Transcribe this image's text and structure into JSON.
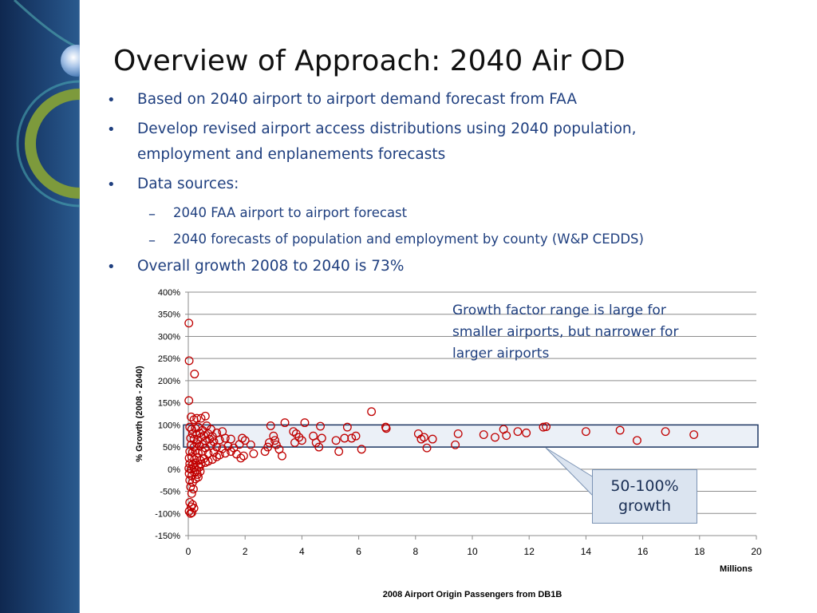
{
  "slide": {
    "title": "Overview of Approach: 2040 Air OD",
    "bullets": [
      {
        "level": 1,
        "lines": [
          "Based on 2040 airport to airport demand forecast from FAA"
        ]
      },
      {
        "level": 1,
        "lines": [
          "Develop revised airport access distributions using 2040 population,",
          "employment and enplanements forecasts"
        ]
      },
      {
        "level": 1,
        "lines": [
          "Data sources:"
        ]
      },
      {
        "level": 2,
        "lines": [
          "2040 FAA airport to airport forecast"
        ]
      },
      {
        "level": 2,
        "lines": [
          "2040 forecasts of population and employment by county (W&P CEDDS)"
        ]
      },
      {
        "level": 1,
        "lines": [
          "Overall growth 2008 to 2040 is 73%"
        ]
      }
    ],
    "bullet_char": "•",
    "sub_bullet_char": "–"
  },
  "chart_data": {
    "type": "scatter",
    "xlabel": "2008 Airport Origin Passengers from DB1B",
    "x_unit_label": "Millions",
    "ylabel": "% Growth (2008 - 2040)",
    "xlim": [
      0,
      20
    ],
    "ylim": [
      -150,
      400
    ],
    "x_ticks": [
      0,
      2,
      4,
      6,
      8,
      10,
      12,
      14,
      16,
      18,
      20
    ],
    "x_tick_labels": [
      "0",
      "2",
      "4",
      "6",
      "8",
      "10",
      "12",
      "14",
      "16",
      "18",
      "20"
    ],
    "y_ticks": [
      -150,
      -100,
      -50,
      0,
      50,
      100,
      150,
      200,
      250,
      300,
      350,
      400
    ],
    "y_tick_labels": [
      "-150%",
      "-100%",
      "-50%",
      "0%",
      "50%",
      "100%",
      "150%",
      "200%",
      "250%",
      "300%",
      "350%",
      "400%"
    ],
    "grid": "horizontal",
    "marker": "open-circle",
    "marker_color": "#c00000",
    "highlight_band": {
      "y_range": [
        50,
        100
      ],
      "fill": "#dbe4f0",
      "stroke": "#1f3864"
    },
    "annotations": [
      {
        "text_lines": [
          "Growth factor range is large for",
          "smaller airports, but narrower for",
          "larger airports"
        ]
      },
      {
        "text_lines": [
          "50-100%",
          "growth"
        ],
        "type": "callout-box"
      }
    ],
    "points": [
      [
        0.02,
        330
      ],
      [
        0.03,
        245
      ],
      [
        0.22,
        215
      ],
      [
        0.02,
        155
      ],
      [
        0.1,
        118
      ],
      [
        0.2,
        112
      ],
      [
        0.3,
        115
      ],
      [
        0.45,
        115
      ],
      [
        0.6,
        120
      ],
      [
        0.05,
        95
      ],
      [
        0.12,
        90
      ],
      [
        0.25,
        92
      ],
      [
        0.35,
        95
      ],
      [
        0.5,
        88
      ],
      [
        0.65,
        98
      ],
      [
        0.8,
        90
      ],
      [
        0.15,
        80
      ],
      [
        0.3,
        78
      ],
      [
        0.4,
        82
      ],
      [
        0.55,
        76
      ],
      [
        0.7,
        80
      ],
      [
        0.85,
        74
      ],
      [
        1.0,
        82
      ],
      [
        1.2,
        85
      ],
      [
        0.08,
        70
      ],
      [
        0.2,
        68
      ],
      [
        0.33,
        66
      ],
      [
        0.45,
        72
      ],
      [
        0.6,
        64
      ],
      [
        0.75,
        68
      ],
      [
        0.9,
        62
      ],
      [
        1.1,
        66
      ],
      [
        1.3,
        70
      ],
      [
        1.5,
        68
      ],
      [
        0.1,
        55
      ],
      [
        0.2,
        50
      ],
      [
        0.3,
        58
      ],
      [
        0.4,
        52
      ],
      [
        0.5,
        56
      ],
      [
        0.6,
        48
      ],
      [
        0.8,
        54
      ],
      [
        1.0,
        50
      ],
      [
        1.2,
        46
      ],
      [
        1.4,
        52
      ],
      [
        1.6,
        48
      ],
      [
        1.8,
        56
      ],
      [
        0.05,
        40
      ],
      [
        0.15,
        38
      ],
      [
        0.25,
        42
      ],
      [
        0.35,
        36
      ],
      [
        0.5,
        40
      ],
      [
        0.7,
        35
      ],
      [
        0.9,
        38
      ],
      [
        1.1,
        32
      ],
      [
        1.3,
        36
      ],
      [
        1.5,
        40
      ],
      [
        1.7,
        34
      ],
      [
        0.03,
        25
      ],
      [
        0.12,
        28
      ],
      [
        0.22,
        22
      ],
      [
        0.3,
        26
      ],
      [
        0.42,
        20
      ],
      [
        0.55,
        24
      ],
      [
        0.7,
        18
      ],
      [
        0.85,
        22
      ],
      [
        1.0,
        28
      ],
      [
        0.05,
        12
      ],
      [
        0.15,
        10
      ],
      [
        0.25,
        14
      ],
      [
        0.35,
        8
      ],
      [
        0.45,
        12
      ],
      [
        0.6,
        15
      ],
      [
        0.02,
        2
      ],
      [
        0.1,
        0
      ],
      [
        0.2,
        4
      ],
      [
        0.3,
        -2
      ],
      [
        0.4,
        5
      ],
      [
        0.03,
        -10
      ],
      [
        0.12,
        -15
      ],
      [
        0.22,
        -8
      ],
      [
        0.32,
        -12
      ],
      [
        0.42,
        -5
      ],
      [
        0.05,
        -25
      ],
      [
        0.15,
        -30
      ],
      [
        0.25,
        -22
      ],
      [
        0.35,
        -18
      ],
      [
        0.08,
        -40
      ],
      [
        0.18,
        -45
      ],
      [
        0.12,
        -55
      ],
      [
        0.05,
        -75
      ],
      [
        0.15,
        -80
      ],
      [
        0.1,
        -85
      ],
      [
        0.2,
        -88
      ],
      [
        0.03,
        -95
      ],
      [
        0.08,
        -100
      ],
      [
        0.13,
        -98
      ],
      [
        1.9,
        70
      ],
      [
        2.0,
        65
      ],
      [
        2.2,
        55
      ],
      [
        2.3,
        35
      ],
      [
        1.85,
        25
      ],
      [
        1.95,
        30
      ],
      [
        2.7,
        40
      ],
      [
        2.8,
        50
      ],
      [
        2.85,
        60
      ],
      [
        2.9,
        98
      ],
      [
        3.0,
        75
      ],
      [
        3.05,
        65
      ],
      [
        3.1,
        55
      ],
      [
        3.2,
        45
      ],
      [
        3.3,
        30
      ],
      [
        3.4,
        105
      ],
      [
        3.7,
        85
      ],
      [
        3.75,
        60
      ],
      [
        3.8,
        80
      ],
      [
        3.9,
        72
      ],
      [
        4.0,
        65
      ],
      [
        4.1,
        105
      ],
      [
        4.4,
        75
      ],
      [
        4.5,
        60
      ],
      [
        4.6,
        50
      ],
      [
        4.65,
        97
      ],
      [
        4.7,
        70
      ],
      [
        5.2,
        65
      ],
      [
        5.3,
        40
      ],
      [
        5.5,
        70
      ],
      [
        5.6,
        95
      ],
      [
        5.75,
        70
      ],
      [
        5.9,
        75
      ],
      [
        6.1,
        45
      ],
      [
        6.45,
        130
      ],
      [
        6.95,
        95
      ],
      [
        6.97,
        92
      ],
      [
        8.1,
        80
      ],
      [
        8.2,
        68
      ],
      [
        8.3,
        72
      ],
      [
        8.4,
        48
      ],
      [
        8.6,
        68
      ],
      [
        9.4,
        55
      ],
      [
        9.5,
        80
      ],
      [
        10.4,
        78
      ],
      [
        10.8,
        72
      ],
      [
        11.1,
        90
      ],
      [
        11.2,
        76
      ],
      [
        11.6,
        85
      ],
      [
        11.9,
        82
      ],
      [
        12.5,
        95
      ],
      [
        12.6,
        96
      ],
      [
        14.0,
        85
      ],
      [
        15.2,
        88
      ],
      [
        15.8,
        65
      ],
      [
        16.8,
        85
      ],
      [
        17.8,
        78
      ]
    ]
  }
}
